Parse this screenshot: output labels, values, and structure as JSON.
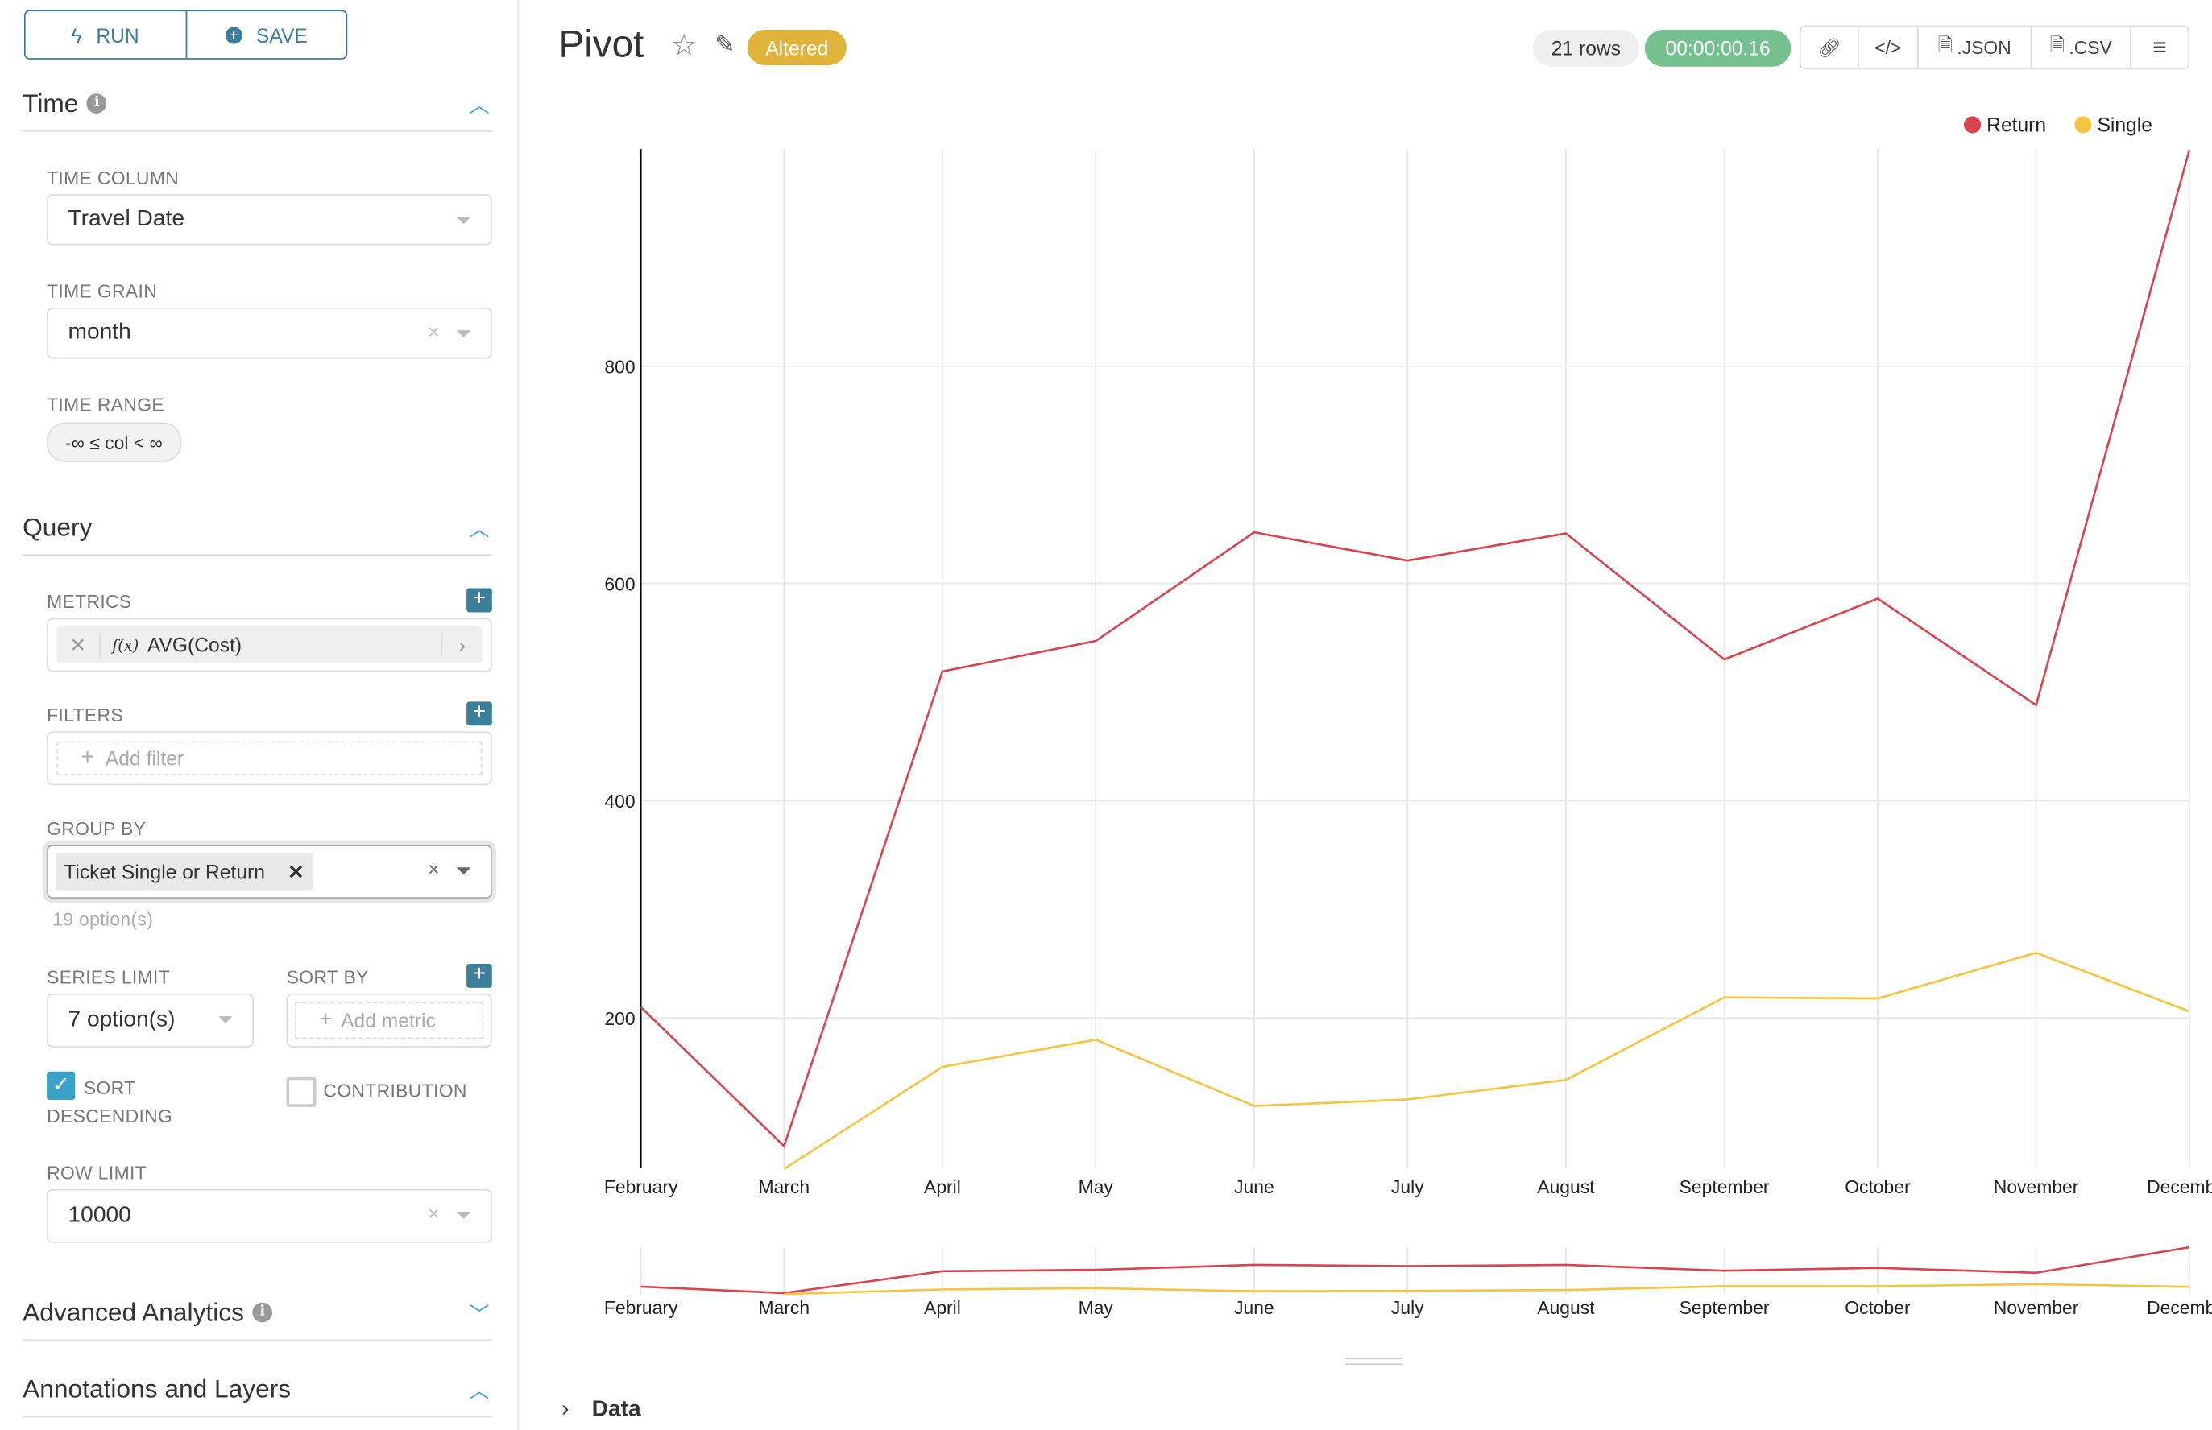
{
  "toolbar": {
    "run_label": "RUN",
    "save_label": "SAVE"
  },
  "time": {
    "title": "Time",
    "time_column_label": "TIME COLUMN",
    "time_column_value": "Travel Date",
    "time_grain_label": "TIME GRAIN",
    "time_grain_value": "month",
    "time_range_label": "TIME RANGE",
    "time_range_value": "-∞ ≤ col < ∞"
  },
  "query": {
    "title": "Query",
    "metrics_label": "METRICS",
    "metric_fx": "f(x)",
    "metric_value": "AVG(Cost)",
    "filters_label": "FILTERS",
    "add_filter": "Add filter",
    "group_by_label": "GROUP BY",
    "group_by_tag": "Ticket Single or Return",
    "group_by_hint": "19 option(s)",
    "series_limit_label": "SERIES LIMIT",
    "series_limit_value": "7 option(s)",
    "sort_by_label": "SORT BY",
    "add_metric": "Add metric",
    "sort_desc_label": "SORT DESCENDING",
    "sort_desc_checked": true,
    "contribution_label": "CONTRIBUTION",
    "contribution_checked": false,
    "row_limit_label": "ROW LIMIT",
    "row_limit_value": "10000"
  },
  "sections": {
    "advanced": "Advanced Analytics",
    "annotations": "Annotations and Layers"
  },
  "header": {
    "title": "Pivot",
    "status": "Altered",
    "rows": "21 rows",
    "duration": "00:00:00.16",
    "json_label": ".JSON",
    "csv_label": ".CSV"
  },
  "data_section": {
    "label": "Data"
  },
  "colors": {
    "accent": "#3c7f9a",
    "altered": "#e0b43b",
    "timer": "#74c08e",
    "return": "#d9444f",
    "single": "#f5c542"
  },
  "chart_data": {
    "type": "line",
    "categories": [
      "February",
      "March",
      "April",
      "May",
      "June",
      "July",
      "August",
      "September",
      "October",
      "November",
      "December"
    ],
    "series": [
      {
        "name": "Return",
        "color": "#d9444f",
        "values": [
          210,
          82,
          519,
          547,
          647,
          621,
          646,
          530,
          586,
          488,
          999
        ]
      },
      {
        "name": "Single",
        "color": "#f5c542",
        "values": [
          null,
          61,
          155,
          180,
          119,
          125,
          143,
          219,
          218,
          260,
          206
        ]
      }
    ],
    "yticks": [
      200,
      400,
      600,
      800
    ],
    "ylim": [
      62,
      1000
    ],
    "grid": true,
    "legend": "top-right"
  }
}
